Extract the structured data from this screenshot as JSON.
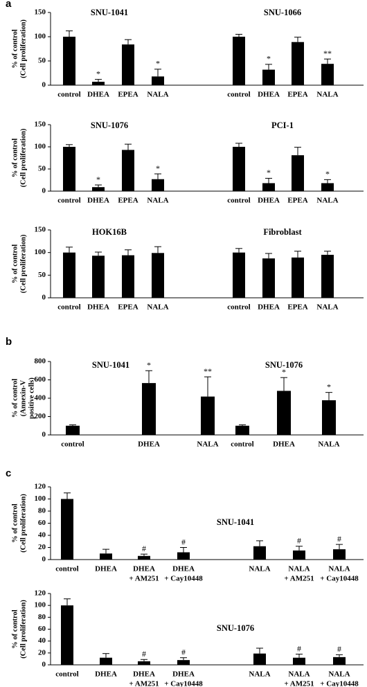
{
  "chart_data": [
    {
      "type": "bar",
      "panel": "a",
      "y_label": [
        "% of control",
        "(Cell proliferation)"
      ],
      "ylim": [
        0,
        150
      ],
      "yticks": [
        0,
        50,
        100,
        150
      ],
      "color": "#000000",
      "groups": [
        {
          "title": "SNU-1041",
          "categories": [
            "control",
            "DHEA",
            "EPEA",
            "NALA"
          ],
          "values": [
            100,
            7,
            84,
            18
          ],
          "errors": [
            12,
            5,
            10,
            15
          ],
          "annotations": [
            null,
            "*",
            null,
            "*"
          ]
        },
        {
          "title": "SNU-1066",
          "categories": [
            "control",
            "DHEA",
            "EPEA",
            "NALA"
          ],
          "values": [
            100,
            32,
            89,
            44
          ],
          "errors": [
            5,
            11,
            10,
            10
          ],
          "annotations": [
            null,
            "*",
            null,
            "**"
          ]
        }
      ]
    },
    {
      "type": "bar",
      "y_label": [
        "% of control",
        "(Cell proliferation)"
      ],
      "ylim": [
        0,
        150
      ],
      "yticks": [
        0,
        50,
        100,
        150
      ],
      "color": "#000000",
      "groups": [
        {
          "title": "SNU-1076",
          "categories": [
            "control",
            "DHEA",
            "EPEA",
            "NALA"
          ],
          "values": [
            100,
            9,
            93,
            27
          ],
          "errors": [
            5,
            5,
            13,
            12
          ],
          "annotations": [
            null,
            "*",
            null,
            "*"
          ]
        },
        {
          "title": "PCI-1",
          "categories": [
            "control",
            "DHEA",
            "EPEA",
            "NALA"
          ],
          "values": [
            100,
            18,
            81,
            18
          ],
          "errors": [
            8,
            11,
            18,
            8
          ],
          "annotations": [
            null,
            "*",
            null,
            "*"
          ]
        }
      ]
    },
    {
      "type": "bar",
      "y_label": [
        "% of control",
        "(Cell proliferation)"
      ],
      "ylim": [
        0,
        150
      ],
      "yticks": [
        0,
        50,
        100,
        150
      ],
      "color": "#000000",
      "groups": [
        {
          "title": "HOK16B",
          "categories": [
            "control",
            "DHEA",
            "EPEA",
            "NALA"
          ],
          "values": [
            100,
            93,
            94,
            99
          ],
          "errors": [
            12,
            8,
            12,
            14
          ],
          "annotations": [
            null,
            null,
            null,
            null
          ]
        },
        {
          "title": "Fibroblast",
          "categories": [
            "control",
            "DHEA",
            "EPEA",
            "NALA"
          ],
          "values": [
            100,
            87,
            89,
            95
          ],
          "errors": [
            9,
            11,
            14,
            8
          ],
          "annotations": [
            null,
            null,
            null,
            null
          ]
        }
      ]
    },
    {
      "type": "bar",
      "panel": "b",
      "y_label": [
        "% of control",
        "(Annexin-V",
        "positive cells)"
      ],
      "ylim": [
        0,
        800
      ],
      "yticks": [
        0,
        200,
        400,
        600,
        800
      ],
      "color": "#000000",
      "groups": [
        {
          "title": "SNU-1041",
          "categories": [
            "control",
            "DHEA",
            "NALA"
          ],
          "values": [
            100,
            565,
            418
          ],
          "errors": [
            10,
            135,
            215
          ],
          "annotations": [
            null,
            "*",
            "**"
          ]
        },
        {
          "title": "SNU-1076",
          "categories": [
            "control",
            "DHEA",
            "NALA"
          ],
          "values": [
            100,
            480,
            378
          ],
          "errors": [
            10,
            145,
            85
          ],
          "annotations": [
            null,
            "*",
            "*"
          ]
        }
      ]
    },
    {
      "type": "bar",
      "panel": "c",
      "y_label": [
        "% of control",
        "(Cell proliferation)"
      ],
      "ylim": [
        0,
        120
      ],
      "yticks": [
        0,
        20,
        40,
        60,
        80,
        100,
        120
      ],
      "color": "#000000",
      "groups": [
        {
          "title": "SNU-1041",
          "categories": [
            [
              "control"
            ],
            [
              "DHEA"
            ],
            [
              "DHEA",
              "+ AM251"
            ],
            [
              "DHEA",
              "+ Cay10448"
            ],
            [
              "NALA"
            ],
            [
              "NALA",
              "+ AM251"
            ],
            [
              "NALA",
              "+ Cay10448"
            ]
          ],
          "values": [
            100,
            10,
            6,
            12,
            22,
            15,
            17
          ],
          "errors": [
            10,
            7,
            3,
            8,
            9,
            7,
            8
          ],
          "annotations": [
            null,
            null,
            "#",
            "#",
            null,
            "#",
            "#"
          ]
        }
      ]
    },
    {
      "type": "bar",
      "y_label": [
        "% of control",
        "(Cell proliferation)"
      ],
      "ylim": [
        0,
        120
      ],
      "yticks": [
        0,
        20,
        40,
        60,
        80,
        100,
        120
      ],
      "color": "#000000",
      "groups": [
        {
          "title": "SNU-1076",
          "categories": [
            [
              "control"
            ],
            [
              "DHEA"
            ],
            [
              "DHEA",
              "+ AM251"
            ],
            [
              "DHEA",
              "+ Cay10448"
            ],
            [
              "NALA"
            ],
            [
              "NALA",
              "+ AM251"
            ],
            [
              "NALA",
              "+ Cay10448"
            ]
          ],
          "values": [
            100,
            12,
            6,
            8,
            19,
            12,
            13
          ],
          "errors": [
            11,
            7,
            3,
            4,
            9,
            6,
            4
          ],
          "annotations": [
            null,
            null,
            "#",
            "#",
            null,
            "#",
            "#"
          ]
        }
      ]
    }
  ]
}
